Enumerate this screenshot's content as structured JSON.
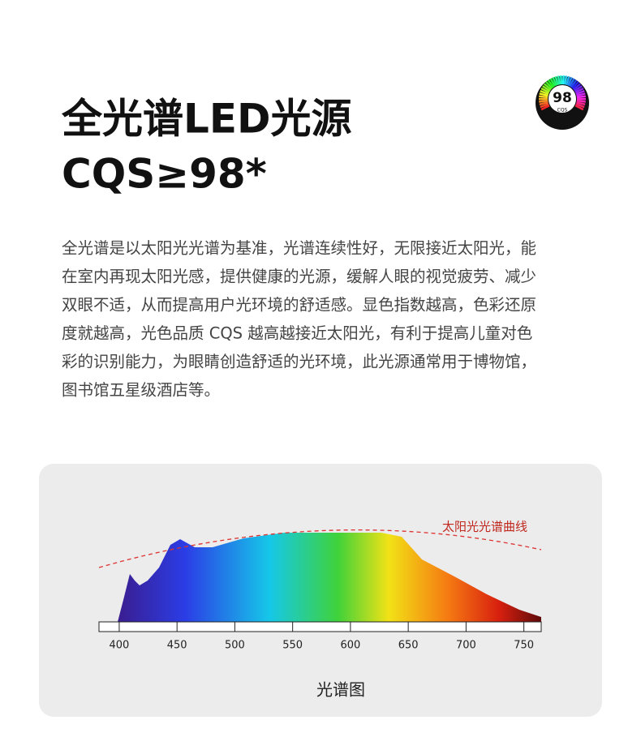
{
  "badge": {
    "value": "98",
    "label": "CQS",
    "ring": "Color Quality Scale"
  },
  "title": [
    "全光谱LED光源",
    "CQS≥98*"
  ],
  "paragraph": [
    "全光谱是以太阳光光谱为基准，光谱连续性好，无限接近太阳光，能",
    "在室内再现太阳光感，提供健康的光源，缓解人眼的视觉疲劳、减少",
    "双眼不适，从而提高用户光环境的舒适感。显色指数越高，色彩还原",
    "度就越高，光色品质 CQS 越高越接近太阳光，有利于提高儿童对色",
    "彩的识别能力，为眼睛创造舒适的光环境，此光源通常用于博物馆，",
    "图书馆五星级酒店等。"
  ],
  "spectrum": {
    "curve_label": "太阳光光谱曲线",
    "caption": "光谱图",
    "xlim": [
      382.5,
      765
    ],
    "xticks": [
      400,
      450,
      500,
      550,
      600,
      650,
      700,
      750
    ]
  }
}
